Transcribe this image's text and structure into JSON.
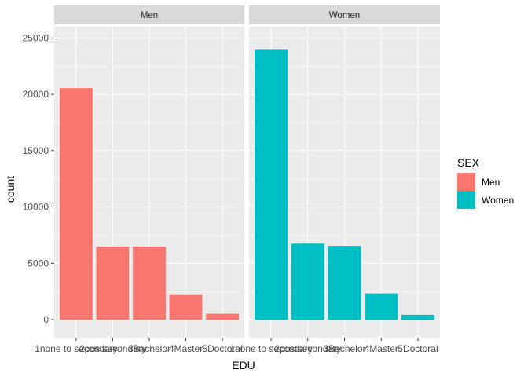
{
  "chart_data": {
    "type": "bar",
    "facet_by": "SEX",
    "xlabel": "EDU",
    "ylabel": "count",
    "ylim": [
      -1600,
      26000
    ],
    "yticks": [
      0,
      5000,
      10000,
      15000,
      20000,
      25000
    ],
    "categories": [
      "1none to secondary",
      "2postsecondary",
      "3Bachelor",
      "4Master",
      "5Doctoral"
    ],
    "panels": [
      {
        "name": "Men",
        "color": "#F8766D",
        "values": [
          20550,
          6480,
          6480,
          2250,
          520
        ]
      },
      {
        "name": "Women",
        "color": "#00BFC4",
        "values": [
          23950,
          6750,
          6550,
          2330,
          430
        ]
      }
    ],
    "legend": {
      "title": "SEX",
      "position": "right",
      "entries": [
        {
          "label": "Men",
          "color": "#F8766D"
        },
        {
          "label": "Women",
          "color": "#00BFC4"
        }
      ]
    },
    "grid": true,
    "panel_background": "#EBEBEB",
    "strip_background": "#D9D9D9"
  }
}
